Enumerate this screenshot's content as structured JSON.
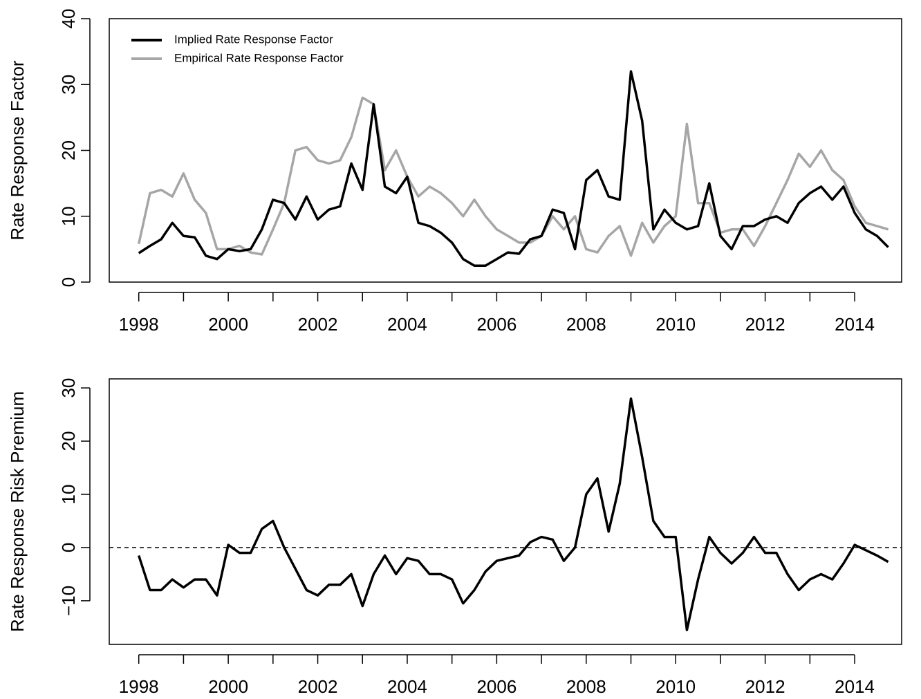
{
  "chart_data": [
    {
      "type": "line",
      "y_label": "Rate Response Factor",
      "x": [
        1998,
        1998.25,
        1998.5,
        1998.75,
        1999,
        1999.25,
        1999.5,
        1999.75,
        2000,
        2000.25,
        2000.5,
        2000.75,
        2001,
        2001.25,
        2001.5,
        2001.75,
        2002,
        2002.25,
        2002.5,
        2002.75,
        2003,
        2003.25,
        2003.5,
        2003.75,
        2004,
        2004.25,
        2004.5,
        2004.75,
        2005,
        2005.25,
        2005.5,
        2005.75,
        2006,
        2006.25,
        2006.5,
        2006.75,
        2007,
        2007.25,
        2007.5,
        2007.75,
        2008,
        2008.25,
        2008.5,
        2008.75,
        2009,
        2009.25,
        2009.5,
        2009.75,
        2010,
        2010.25,
        2010.5,
        2010.75,
        2011,
        2011.25,
        2011.5,
        2011.75,
        2012,
        2012.25,
        2012.5,
        2012.75,
        2013,
        2013.25,
        2013.5,
        2013.75,
        2014,
        2014.25,
        2014.5,
        2014.75
      ],
      "series": [
        {
          "name": "Implied Rate Response Factor",
          "color": "#000000",
          "values": [
            4.4,
            5.5,
            6.5,
            9,
            7,
            6.8,
            4,
            3.5,
            5,
            4.7,
            5,
            8,
            12.5,
            12,
            9.5,
            13,
            9.5,
            11,
            11.5,
            18,
            14,
            27,
            14.5,
            13.5,
            16,
            9,
            8.5,
            7.5,
            6,
            3.5,
            2.5,
            2.5,
            3.5,
            4.5,
            4.3,
            6.5,
            7,
            11,
            10.5,
            5,
            15.5,
            17,
            13,
            12.5,
            32,
            24.5,
            8,
            11,
            9,
            8,
            8.5,
            15,
            7,
            5,
            8.5,
            8.5,
            9.5,
            10,
            9,
            12,
            13.5,
            14.5,
            12.5,
            14.5,
            10.5,
            8,
            7,
            5.3
          ]
        },
        {
          "name": "Empirical Rate Response Factor",
          "color": "#a6a6a6",
          "values": [
            5.8,
            13.5,
            14,
            13,
            16.5,
            12.5,
            10.5,
            5,
            5,
            5.5,
            4.5,
            4.2,
            8,
            12,
            20,
            20.5,
            18.5,
            18,
            18.5,
            22,
            28,
            27,
            17,
            20,
            16,
            13,
            14.5,
            13.5,
            12,
            10,
            12.5,
            10,
            8,
            7,
            6,
            6,
            7,
            10,
            8,
            10,
            5,
            4.5,
            7,
            8.5,
            4,
            9,
            6,
            8.5,
            10,
            24,
            12,
            12,
            7.5,
            8,
            8,
            5.5,
            8.5,
            12,
            15.5,
            19.5,
            17.5,
            20,
            17,
            15.5,
            11.5,
            9,
            8.5,
            8
          ]
        }
      ],
      "xlim": [
        1997.34,
        2015.05
      ],
      "xticks": [
        1998,
        2000,
        2002,
        2004,
        2006,
        2008,
        2010,
        2012,
        2014
      ],
      "xminor_ticks": [
        1999,
        2001,
        2003,
        2005,
        2007,
        2009,
        2011,
        2013
      ],
      "ylim": [
        0,
        40
      ],
      "yticks": [
        0,
        10,
        20,
        30,
        40
      ],
      "legend": "top-left"
    },
    {
      "type": "line",
      "y_label": "Rate Response Risk Premium",
      "x": [
        1998,
        1998.25,
        1998.5,
        1998.75,
        1999,
        1999.25,
        1999.5,
        1999.75,
        2000,
        2000.25,
        2000.5,
        2000.75,
        2001,
        2001.25,
        2001.5,
        2001.75,
        2002,
        2002.25,
        2002.5,
        2002.75,
        2003,
        2003.25,
        2003.5,
        2003.75,
        2004,
        2004.25,
        2004.5,
        2004.75,
        2005,
        2005.25,
        2005.5,
        2005.75,
        2006,
        2006.25,
        2006.5,
        2006.75,
        2007,
        2007.25,
        2007.5,
        2007.75,
        2008,
        2008.25,
        2008.5,
        2008.75,
        2009,
        2009.25,
        2009.5,
        2009.75,
        2010,
        2010.25,
        2010.5,
        2010.75,
        2011,
        2011.25,
        2011.5,
        2011.75,
        2012,
        2012.25,
        2012.5,
        2012.75,
        2013,
        2013.25,
        2013.5,
        2013.75,
        2014,
        2014.25,
        2014.5,
        2014.75
      ],
      "series": [
        {
          "color": "#000000",
          "values": [
            -1.5,
            -8,
            -8,
            -6,
            -7.5,
            -6,
            -6,
            -9,
            0.5,
            -1,
            -1,
            3.5,
            5,
            0,
            -4,
            -8,
            -9,
            -7,
            -7,
            -5,
            -11,
            -5,
            -1.5,
            -5,
            -2,
            -2.5,
            -5,
            -5,
            -6,
            -10.5,
            -8,
            -4.5,
            -2.5,
            -2,
            -1.5,
            1,
            2,
            1.5,
            -2.5,
            0,
            10,
            13,
            3,
            12,
            28,
            17,
            5,
            2,
            2,
            -15.5,
            -6,
            2,
            -1,
            -3,
            -1,
            2,
            -1,
            -1,
            -5,
            -8,
            -6,
            -5,
            -6,
            -3,
            0.5,
            -0.5,
            -1.5,
            -2.7
          ]
        }
      ],
      "hline": 0,
      "xlim": [
        1997.34,
        2015.05
      ],
      "xticks": [
        1998,
        2000,
        2002,
        2004,
        2006,
        2008,
        2010,
        2012,
        2014
      ],
      "xminor_ticks": [
        1999,
        2001,
        2003,
        2005,
        2007,
        2009,
        2011,
        2013
      ],
      "ylim": [
        -18.2,
        31.7
      ],
      "yticks": [
        {
          "value": -10,
          "label": "−10"
        },
        0,
        10,
        20,
        30
      ]
    }
  ]
}
